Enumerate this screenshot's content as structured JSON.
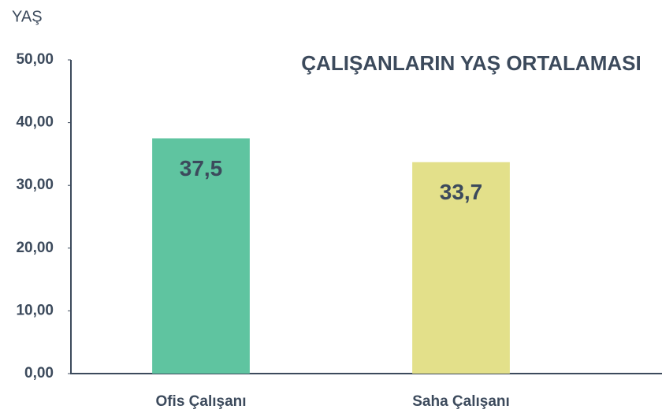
{
  "chart_data": {
    "type": "bar",
    "title": "ÇALIŞANLARIN YAŞ ORTALAMASI",
    "y_label": "YAŞ",
    "categories": [
      "Ofis Çalışanı",
      "Saha Çalışanı"
    ],
    "values": [
      37.5,
      33.7
    ],
    "value_labels": [
      "37,5",
      "33,7"
    ],
    "colors": [
      "#5fc4a0",
      "#e3e08a"
    ],
    "ylim": [
      0,
      50
    ],
    "yticks": [
      {
        "value": 0,
        "label": "0,00"
      },
      {
        "value": 10,
        "label": "10,00"
      },
      {
        "value": 20,
        "label": "20,00"
      },
      {
        "value": 30,
        "label": "30,00"
      },
      {
        "value": 40,
        "label": "40,00"
      },
      {
        "value": 50,
        "label": "50,00"
      }
    ],
    "grid": false
  }
}
